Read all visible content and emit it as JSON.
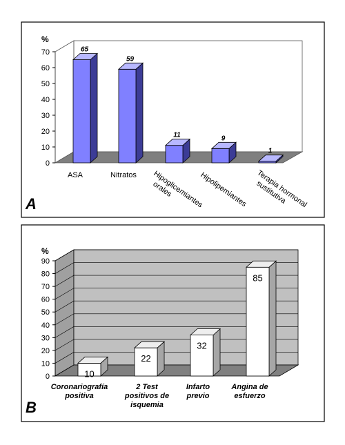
{
  "chart_data": [
    {
      "type": "bar",
      "panel_label": "A",
      "ylabel": "%",
      "ylim": [
        0,
        70
      ],
      "yticks": [
        "0",
        "10",
        "20",
        "30",
        "40",
        "50",
        "60",
        "70"
      ],
      "categories": [
        "ASA",
        "Nitratos",
        "Hipoglicemiantes orales",
        "Hipolipemiantes",
        "Terapia hormonal sustitutiva"
      ],
      "category_lines": [
        [
          "ASA"
        ],
        [
          "Nitratos"
        ],
        [
          "Hipoglicemiantes",
          "orales"
        ],
        [
          "Hipolipemiantes"
        ],
        [
          "Terapia hormonal",
          "sustitutiva"
        ]
      ],
      "values": [
        65,
        59,
        11,
        9,
        1
      ],
      "data_labels": [
        "65",
        "59",
        "11",
        "9",
        "1"
      ],
      "grid": false,
      "colors": {
        "bar_front": "#8080ff",
        "bar_top": "#b8b8ff",
        "bar_side": "#3c3c96",
        "floor": "#7f7f7f"
      }
    },
    {
      "type": "bar",
      "panel_label": "B",
      "ylabel": "%",
      "ylim": [
        0,
        90
      ],
      "yticks": [
        "0",
        "10",
        "20",
        "30",
        "40",
        "50",
        "60",
        "70",
        "80",
        "90"
      ],
      "categories": [
        "Coronariografía positiva",
        "2 Test positivos de isquemia",
        "Infarto previo",
        "Angina de esfuerzo"
      ],
      "category_lines": [
        [
          "Coronariografía",
          "positiva"
        ],
        [
          "2 Test",
          "positivos de",
          "isquemia"
        ],
        [
          "Infarto",
          "previo"
        ],
        [
          "Angina de",
          "esfuerzo"
        ]
      ],
      "values": [
        10,
        22,
        32,
        85
      ],
      "data_labels": [
        "10",
        "22",
        "32",
        "85"
      ],
      "grid": true,
      "colors": {
        "bar_front": "#ffffff",
        "bar_top": "#eeeeee",
        "bar_side": "#a6a6a6",
        "floor": "#808080",
        "wall": "#c0c0c0",
        "sidewall": "#a0a0a0"
      }
    }
  ]
}
